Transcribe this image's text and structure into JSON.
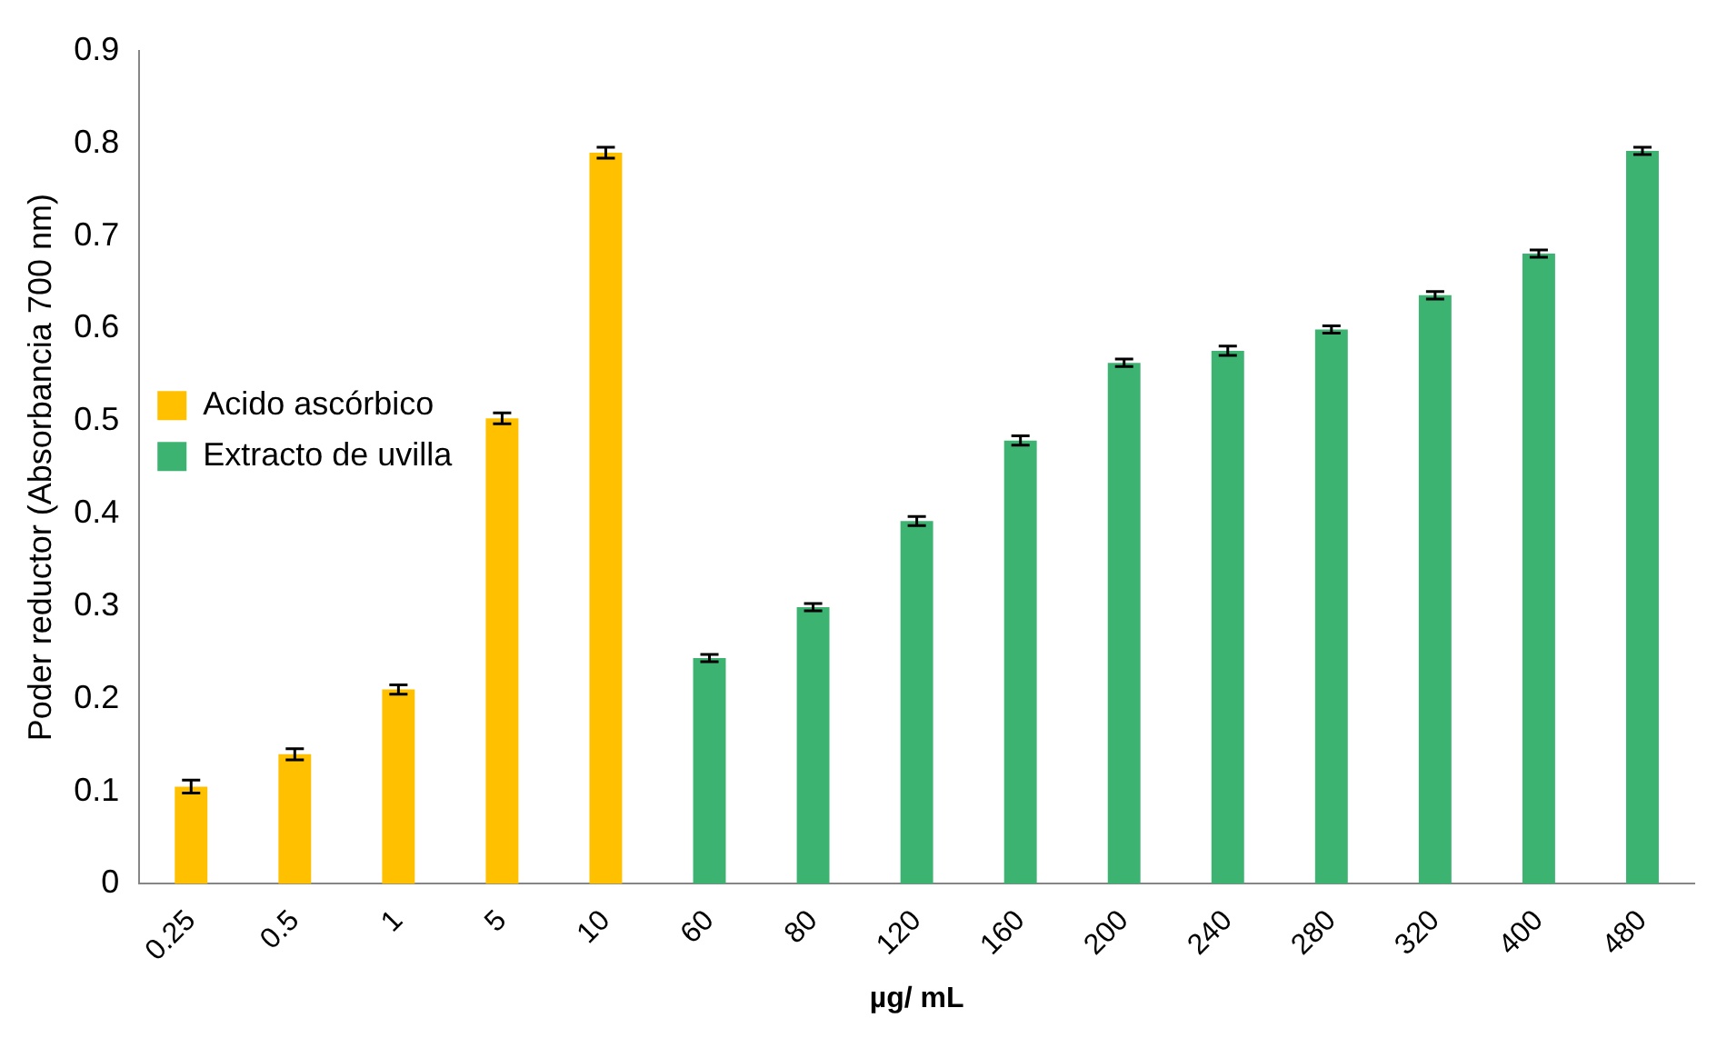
{
  "chart_data": {
    "type": "bar",
    "xlabel": "µg/ mL",
    "ylabel": "Poder reductor (Absorbancia 700 nm)",
    "categories": [
      "0.25",
      "0.5",
      "1",
      "5",
      "10",
      "60",
      "80",
      "120",
      "160",
      "200",
      "240",
      "280",
      "320",
      "400",
      "480"
    ],
    "series": [
      {
        "name": "Acido ascórbico",
        "color": "#ffc000",
        "values": [
          0.105,
          0.14,
          0.21,
          0.503,
          0.79,
          null,
          null,
          null,
          null,
          null,
          null,
          null,
          null,
          null,
          null
        ],
        "errors": [
          0.007,
          0.006,
          0.005,
          0.006,
          0.006,
          null,
          null,
          null,
          null,
          null,
          null,
          null,
          null,
          null,
          null
        ]
      },
      {
        "name": "Extracto de uvilla",
        "color": "#3cb371",
        "values": [
          null,
          null,
          null,
          null,
          null,
          0.244,
          0.299,
          0.392,
          0.479,
          0.563,
          0.576,
          0.599,
          0.636,
          0.681,
          0.792
        ],
        "errors": [
          null,
          null,
          null,
          null,
          null,
          0.004,
          0.004,
          0.005,
          0.005,
          0.004,
          0.005,
          0.004,
          0.004,
          0.004,
          0.004
        ]
      }
    ],
    "ylim": [
      0,
      0.9
    ],
    "yticks": [
      0,
      0.1,
      0.2,
      0.3,
      0.4,
      0.5,
      0.6,
      0.7,
      0.8,
      0.9
    ],
    "grid": false,
    "legend": "top"
  }
}
